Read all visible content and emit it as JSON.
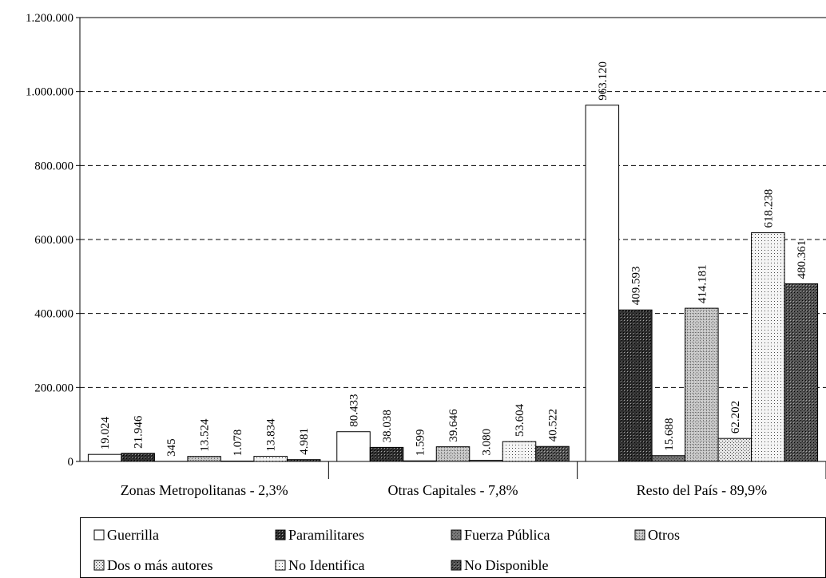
{
  "chart_data": {
    "type": "bar",
    "categories": [
      "Zonas Metropolitanas - 2,3%",
      "Otras Capitales - 7,8%",
      "Resto del País - 89,9%"
    ],
    "series": [
      {
        "name": "Guerrilla",
        "color": "#ffffff",
        "values": [
          19024,
          80433,
          963120
        ],
        "value_labels": [
          "19.024",
          "80.433",
          "963.120"
        ]
      },
      {
        "name": "Paramilitares",
        "color": "#333333",
        "values": [
          21946,
          38038,
          409593
        ],
        "value_labels": [
          "21.946",
          "38.038",
          "409.593"
        ]
      },
      {
        "name": "Fuerza Pública",
        "color": "#777777",
        "values": [
          345,
          1599,
          15688
        ],
        "value_labels": [
          "345",
          "1.599",
          "15.688"
        ]
      },
      {
        "name": "Otros",
        "color": "#cccccc",
        "values": [
          13524,
          39646,
          414181
        ],
        "value_labels": [
          "13.524",
          "39.646",
          "414.181"
        ]
      },
      {
        "name": "Dos o más autores",
        "color": "#e6e6e6",
        "values": [
          1078,
          3080,
          62202
        ],
        "value_labels": [
          "1.078",
          "3.080",
          "62.202"
        ]
      },
      {
        "name": "No Identifica",
        "color": "#f4f4f4",
        "values": [
          13834,
          53604,
          618238
        ],
        "value_labels": [
          "13.834",
          "53.604",
          "618.238"
        ]
      },
      {
        "name": "No Disponible",
        "color": "#555555",
        "values": [
          4981,
          40522,
          480361
        ],
        "value_labels": [
          "4.981",
          "40.522",
          "480.361"
        ]
      }
    ],
    "ylim": [
      0,
      1200000
    ],
    "yticks": [
      {
        "value": 0,
        "label": "0"
      },
      {
        "value": 200000,
        "label": "200.000"
      },
      {
        "value": 400000,
        "label": "400.000"
      },
      {
        "value": 600000,
        "label": "600.000"
      },
      {
        "value": 800000,
        "label": "800.000"
      },
      {
        "value": 1000000,
        "label": "1.000.000"
      },
      {
        "value": 1200000,
        "label": "1.200.000"
      }
    ],
    "grid": true
  }
}
